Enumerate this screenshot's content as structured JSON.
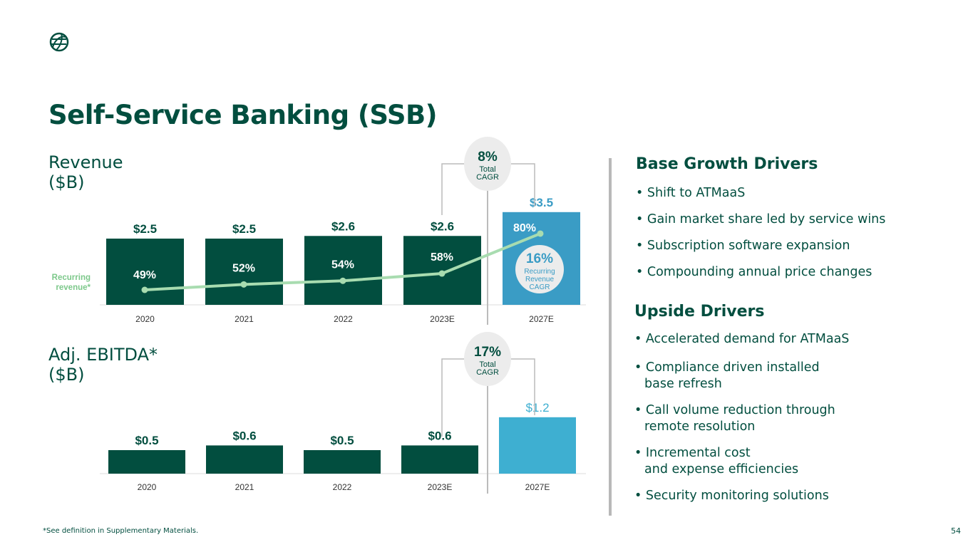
{
  "title": "Self-Service Banking (SSB)",
  "footnote": "*See definition in Supplementary Materials.",
  "page_number": "54",
  "colors": {
    "dark": "#024e3f",
    "blue": "#3a9cc5",
    "blue2": "#3eafd1",
    "line": "#a8dcb0"
  },
  "right": {
    "base_title": "Base Growth Drivers",
    "base": [
      "• Shift to ATMaaS",
      "• Gain market share led by service wins",
      "• Subscription software expansion",
      "• Compounding annual price changes"
    ],
    "upside_title": "Upside Drivers",
    "upside": [
      [
        "• Accelerated demand for ATMaaS"
      ],
      [
        "• Compliance driven installed",
        "base refresh"
      ],
      [
        "• Call volume reduction through",
        "remote resolution"
      ],
      [
        "• Incremental cost",
        "and expense efficiencies"
      ],
      [
        "• Security monitoring solutions"
      ]
    ]
  },
  "chart_data": [
    {
      "type": "bar",
      "title": "Revenue",
      "unit": "($B)",
      "categories": [
        "2020",
        "2021",
        "2022",
        "2023E",
        "2027E"
      ],
      "values": [
        2.5,
        2.5,
        2.6,
        2.6,
        3.5
      ],
      "labels": [
        "$2.5",
        "$2.5",
        "$2.6",
        "$2.6",
        "$3.5"
      ],
      "line": {
        "name": "Recurring revenue*",
        "name_lines": [
          "Recurring",
          "revenue*"
        ],
        "values": [
          49,
          52,
          54,
          58,
          80
        ],
        "labels": [
          "49%",
          "52%",
          "54%",
          "58%",
          "80%"
        ]
      },
      "cagr": {
        "value": "8%",
        "label": [
          "Total",
          "CAGR"
        ]
      },
      "cagr2": {
        "value": "16%",
        "label": [
          "Recurring",
          "Revenue",
          "CAGR"
        ]
      }
    },
    {
      "type": "bar",
      "title": "Adj. EBITDA*",
      "unit": "($B)",
      "categories": [
        "2020",
        "2021",
        "2022",
        "2023E",
        "2027E"
      ],
      "values": [
        0.5,
        0.6,
        0.5,
        0.6,
        1.2
      ],
      "labels": [
        "$0.5",
        "$0.6",
        "$0.5",
        "$0.6",
        "$1.2"
      ],
      "cagr": {
        "value": "17%",
        "label": [
          "Total",
          "CAGR"
        ]
      }
    }
  ]
}
